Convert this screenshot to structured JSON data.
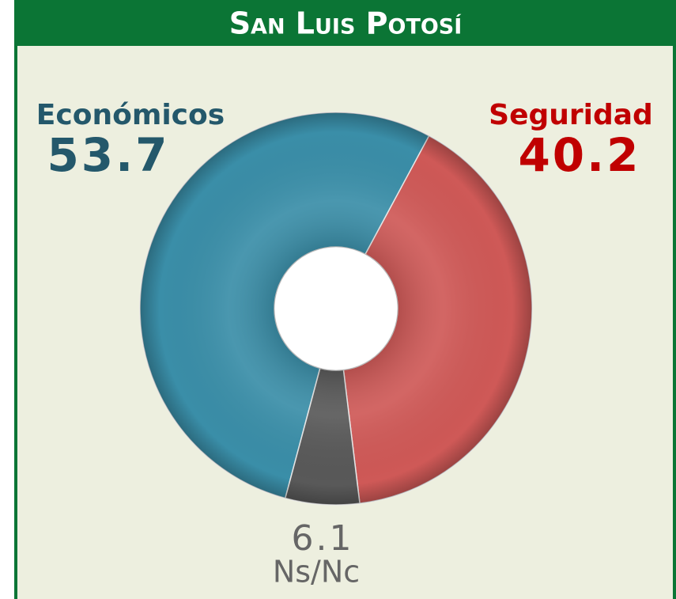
{
  "chart_data": {
    "type": "donut",
    "title": "San Luis Potosí",
    "categories": [
      "Económicos",
      "Seguridad",
      "Ns/Nc"
    ],
    "values": [
      53.7,
      40.2,
      6.1
    ],
    "colors": [
      "#3a8ea8",
      "#cf5957",
      "#595959"
    ],
    "label_colors": [
      "#24586b",
      "#c00000",
      "#666666"
    ]
  }
}
